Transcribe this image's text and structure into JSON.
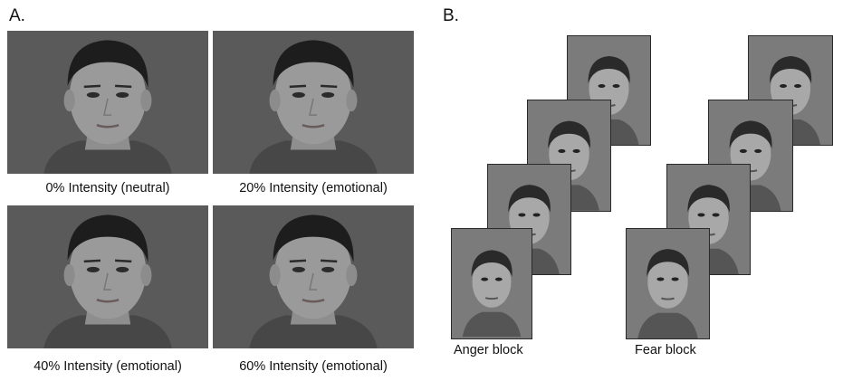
{
  "panel_a": {
    "letter": "A.",
    "captions": [
      "0% Intensity (neutral)",
      "20% Intensity (emotional)",
      "40% Intensity (emotional)",
      "60% Intensity (emotional)"
    ]
  },
  "panel_b": {
    "letter": "B.",
    "anger_label": "Anger block",
    "fear_label": "Fear block"
  }
}
